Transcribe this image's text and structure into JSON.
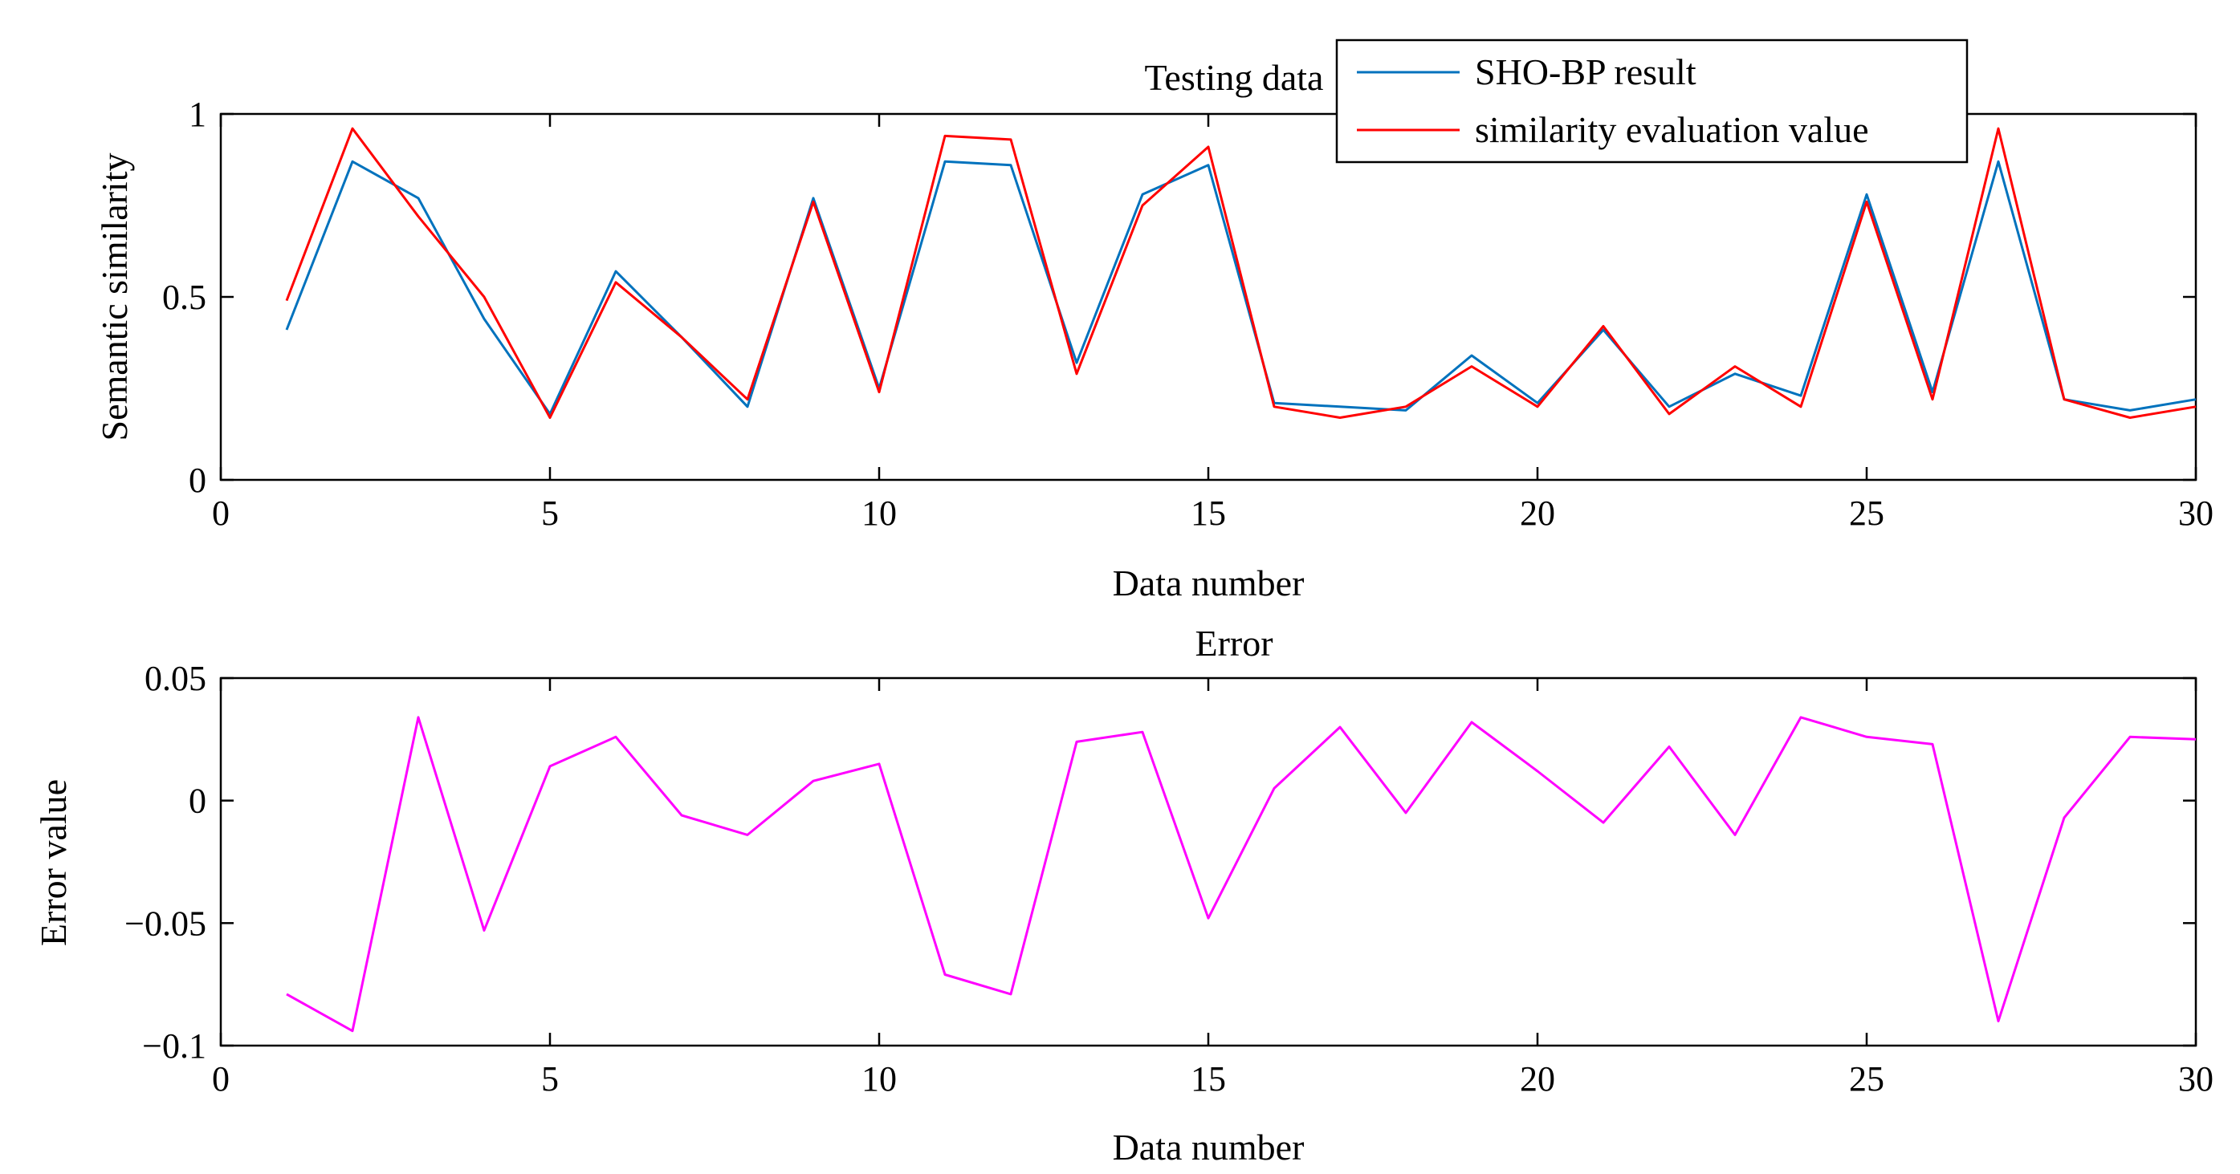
{
  "chart_data": [
    {
      "type": "line",
      "title": "Testing data",
      "xlabel": "Data number",
      "ylabel": "Semantic similarity",
      "xlim": [
        0,
        30
      ],
      "ylim": [
        0,
        1
      ],
      "xticks": [
        0,
        5,
        10,
        15,
        20,
        25,
        30
      ],
      "xtick_labels": [
        "0",
        "5",
        "10",
        "15",
        "20",
        "25",
        "30"
      ],
      "yticks": [
        0,
        0.5,
        1
      ],
      "ytick_labels": [
        "0",
        "0.5",
        "1"
      ],
      "grid": false,
      "legend_position": "top-right",
      "x": [
        1,
        2,
        3,
        4,
        5,
        6,
        7,
        8,
        9,
        10,
        11,
        12,
        13,
        14,
        15,
        16,
        17,
        18,
        19,
        20,
        21,
        22,
        23,
        24,
        25,
        26,
        27,
        28,
        29,
        30
      ],
      "series": [
        {
          "name": "SHO-BP result",
          "color": "#0072BD",
          "values": [
            0.41,
            0.87,
            0.77,
            0.44,
            0.18,
            0.57,
            0.39,
            0.2,
            0.77,
            0.25,
            0.87,
            0.86,
            0.32,
            0.78,
            0.86,
            0.21,
            0.2,
            0.19,
            0.34,
            0.21,
            0.41,
            0.2,
            0.29,
            0.23,
            0.78,
            0.24,
            0.87,
            0.22,
            0.19,
            0.22
          ]
        },
        {
          "name": "similarity evaluation value",
          "color": "#FF0000",
          "values": [
            0.49,
            0.96,
            0.72,
            0.5,
            0.17,
            0.54,
            0.39,
            0.22,
            0.76,
            0.24,
            0.94,
            0.93,
            0.29,
            0.75,
            0.91,
            0.2,
            0.17,
            0.2,
            0.31,
            0.2,
            0.42,
            0.18,
            0.31,
            0.2,
            0.76,
            0.22,
            0.96,
            0.22,
            0.17,
            0.2
          ]
        }
      ]
    },
    {
      "type": "line",
      "title": "Error",
      "xlabel": "Data number",
      "ylabel": "Error value",
      "xlim": [
        0,
        30
      ],
      "ylim": [
        -0.1,
        0.05
      ],
      "xticks": [
        0,
        5,
        10,
        15,
        20,
        25,
        30
      ],
      "xtick_labels": [
        "0",
        "5",
        "10",
        "15",
        "20",
        "25",
        "30"
      ],
      "yticks": [
        -0.1,
        -0.05,
        0,
        0.05
      ],
      "ytick_labels": [
        "−0.1",
        "−0.05",
        "0",
        "0.05"
      ],
      "grid": false,
      "x": [
        1,
        2,
        3,
        4,
        5,
        6,
        7,
        8,
        9,
        10,
        11,
        12,
        13,
        14,
        15,
        16,
        17,
        18,
        19,
        20,
        21,
        22,
        23,
        24,
        25,
        26,
        27,
        28,
        29,
        30
      ],
      "series": [
        {
          "color": "#FF00FF",
          "values": [
            -0.079,
            -0.094,
            0.034,
            -0.053,
            0.014,
            0.026,
            -0.006,
            -0.014,
            0.008,
            0.015,
            -0.071,
            -0.079,
            0.024,
            0.028,
            -0.048,
            0.005,
            0.03,
            -0.005,
            0.032,
            0.012,
            -0.009,
            0.022,
            -0.014,
            0.034,
            0.026,
            0.023,
            -0.09,
            -0.007,
            0.026,
            0.025
          ]
        }
      ]
    }
  ]
}
